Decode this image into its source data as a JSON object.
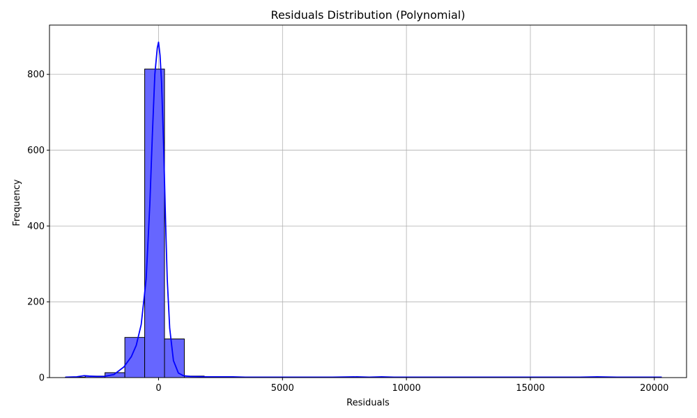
{
  "chart_data": {
    "type": "bar",
    "title": "Residuals Distribution (Polynomial)",
    "xlabel": "Residuals",
    "ylabel": "Frequency",
    "xlim": [
      -4400,
      21300
    ],
    "ylim": [
      0,
      930
    ],
    "x_ticks": [
      0,
      5000,
      10000,
      15000,
      20000
    ],
    "x_tick_labels": [
      "0",
      "5000",
      "10000",
      "15000",
      "20000"
    ],
    "y_ticks": [
      0,
      200,
      400,
      600,
      800
    ],
    "y_tick_labels": [
      "0",
      "200",
      "400",
      "600",
      "800"
    ],
    "grid": true,
    "bins": {
      "edges": [
        -3760,
        -2960,
        -2160,
        -1360,
        -560,
        240,
        1040,
        1840,
        2640,
        3440,
        4240,
        5040,
        5840,
        6640,
        7440,
        8240,
        9040,
        9840,
        10640,
        11440,
        12240,
        13040,
        13840,
        14640,
        15440,
        16240,
        17040,
        17840,
        18640,
        19440,
        20240
      ],
      "counts": [
        1,
        4,
        13,
        106,
        814,
        102,
        4,
        1,
        1,
        1,
        0,
        0,
        0,
        0,
        0,
        1,
        1,
        0,
        0,
        0,
        0,
        0,
        0,
        0,
        0,
        0,
        1,
        0,
        0,
        1
      ],
      "fill_color": "#6666ff",
      "edge_color": "#000000"
    },
    "kde": {
      "name": "",
      "color": "#0000ff",
      "x": [
        -3760,
        -3300,
        -3000,
        -2800,
        -2500,
        -2200,
        -1800,
        -1400,
        -1100,
        -900,
        -700,
        -500,
        -350,
        -250,
        -150,
        -50,
        0,
        60,
        120,
        200,
        280,
        350,
        450,
        600,
        800,
        1000,
        1300,
        2000,
        3000,
        3500,
        5000,
        7000,
        8000,
        8500,
        9000,
        9500,
        10000,
        12000,
        15000,
        17000,
        17700,
        18500,
        20000,
        20300
      ],
      "y": [
        1,
        2,
        5,
        4,
        3,
        3,
        8,
        28,
        55,
        85,
        140,
        260,
        460,
        640,
        800,
        870,
        885,
        850,
        780,
        620,
        420,
        260,
        130,
        45,
        12,
        5,
        3,
        2,
        2,
        1,
        1,
        1,
        2,
        1,
        2,
        1,
        1,
        1,
        1,
        1,
        2,
        1,
        1,
        1
      ]
    }
  }
}
